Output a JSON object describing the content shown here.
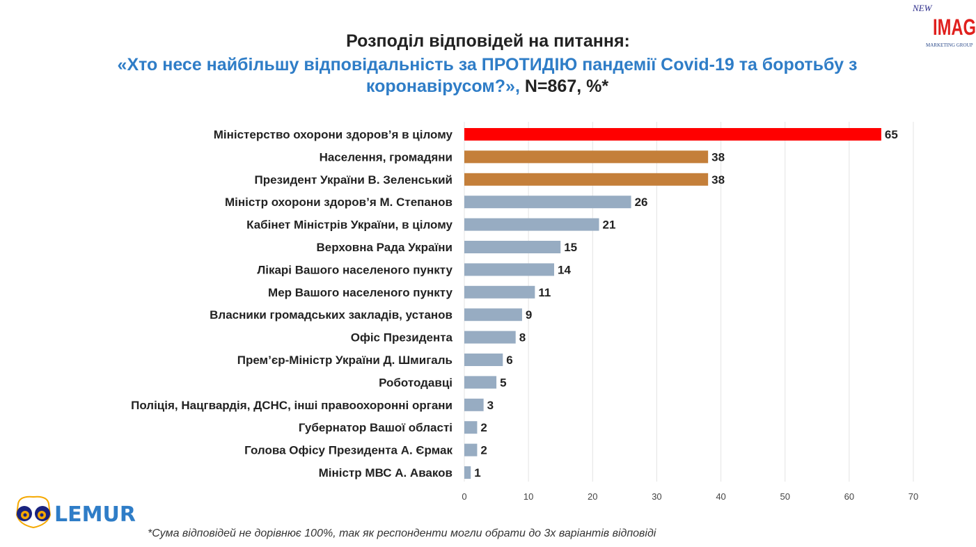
{
  "title": {
    "line1": "Розподіл відповідей на питання:",
    "question": "«Хто несе найбільшу відповідальність за ПРОТИДІЮ пандемії Covid-19 та боротьбу з коронавірусом?»,",
    "suffix": " N=867, %*"
  },
  "footnote": "*Сума відповідей не дорівнює 100%, так як респонденти могли обрати до 3х варіантів відповіді",
  "logos": {
    "top_right": "NEW IMAGE MARKETING GROUP",
    "bottom_left": "LEMUR"
  },
  "colors": {
    "top": "#ff0000",
    "second": "#c47f3a",
    "other": "#97acc2",
    "title_blue": "#2f7dc7"
  },
  "chart_data": {
    "type": "bar",
    "orientation": "horizontal",
    "categories": [
      "Міністерство охорони здоров’я в цілому",
      "Населення, громадяни",
      "Президент України В. Зеленський",
      "Міністр охорони здоров’я М. Степанов",
      "Кабінет Міністрів України, в цілому",
      "Верховна Рада України",
      "Лікарі Вашого населеного пункту",
      "Мер Вашого населеного пункту",
      "Власники громадських закладів, установ",
      "Офіс Президента",
      "Прем’єр-Міністр України Д. Шмигаль",
      "Роботодавці",
      "Поліція, Нацгвардія, ДСНС, інші правоохоронні органи",
      "Губернатор Вашої області",
      "Голова Офісу Президента А. Єрмак",
      "Міністр МВС А. Аваков"
    ],
    "values": [
      65,
      38,
      38,
      26,
      21,
      15,
      14,
      11,
      9,
      8,
      6,
      5,
      3,
      2,
      2,
      1
    ],
    "bar_colors": [
      "#ff0000",
      "#c47f3a",
      "#c47f3a",
      "#97acc2",
      "#97acc2",
      "#97acc2",
      "#97acc2",
      "#97acc2",
      "#97acc2",
      "#97acc2",
      "#97acc2",
      "#97acc2",
      "#97acc2",
      "#97acc2",
      "#97acc2",
      "#97acc2"
    ],
    "xlim": [
      0,
      70
    ],
    "xticks": [
      0,
      10,
      20,
      30,
      40,
      50,
      60,
      70
    ],
    "grid": true,
    "data_labels": true
  }
}
